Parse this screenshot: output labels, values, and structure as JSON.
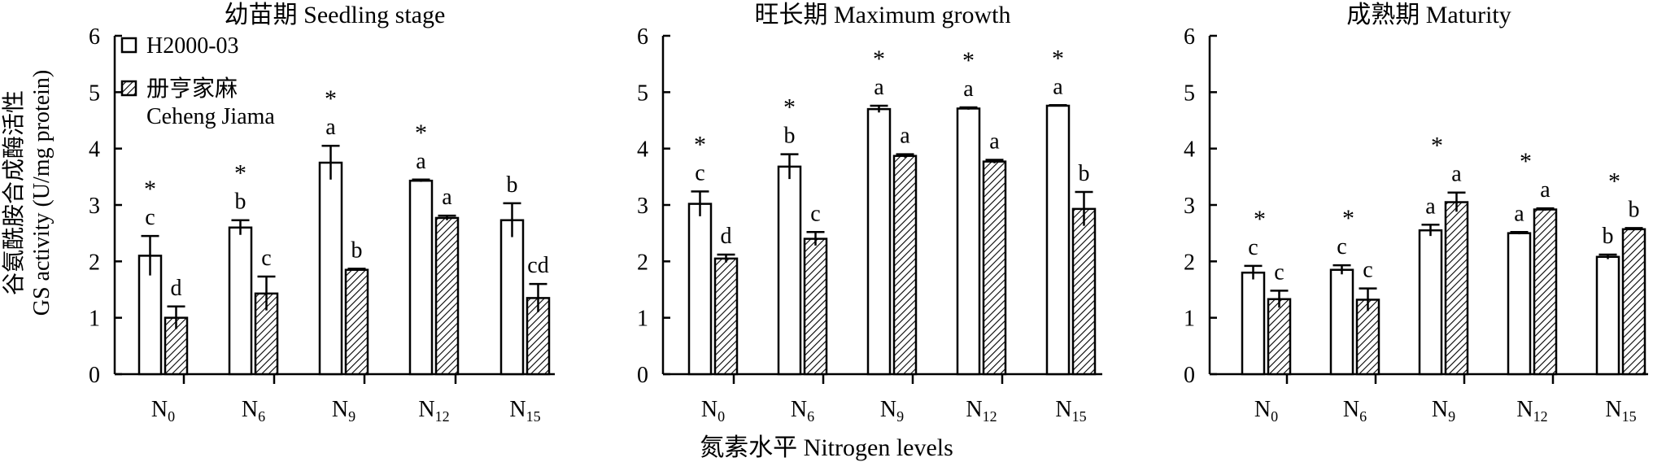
{
  "chart_data": [
    {
      "type": "bar",
      "title": "幼苗期 Seedling stage",
      "ylim": [
        0,
        6
      ],
      "yticks": [
        "0",
        "1",
        "2",
        "3",
        "4",
        "5",
        "6"
      ],
      "categories": [
        "N0",
        "N6",
        "N9",
        "N12",
        "N15"
      ],
      "series": [
        {
          "name": "H2000-03",
          "values": [
            2.1,
            2.6,
            3.75,
            3.43,
            2.73
          ],
          "errors": [
            0.35,
            0.13,
            0.3,
            0.02,
            0.3
          ],
          "letters": [
            "c",
            "b",
            "a",
            "a",
            "b"
          ]
        },
        {
          "name": "册亨家麻 Ceheng Jiama",
          "values": [
            1.0,
            1.43,
            1.85,
            2.77,
            1.35
          ],
          "errors": [
            0.2,
            0.3,
            0.02,
            0.04,
            0.25
          ],
          "letters": [
            "d",
            "c",
            "b",
            "a",
            "cd"
          ]
        }
      ],
      "stars": [
        true,
        true,
        true,
        true,
        false
      ]
    },
    {
      "type": "bar",
      "title": "旺长期 Maximum growth",
      "ylim": [
        0,
        6
      ],
      "yticks": [
        "0",
        "1",
        "2",
        "3",
        "4",
        "5",
        "6"
      ],
      "categories": [
        "N0",
        "N6",
        "N9",
        "N12",
        "N15"
      ],
      "series": [
        {
          "name": "H2000-03",
          "values": [
            3.02,
            3.68,
            4.7,
            4.71,
            4.76
          ],
          "errors": [
            0.22,
            0.22,
            0.06,
            0.02,
            0.01
          ],
          "letters": [
            "c",
            "b",
            "a",
            "a",
            "a"
          ]
        },
        {
          "name": "册亨家麻 Ceheng Jiama",
          "values": [
            2.05,
            2.4,
            3.87,
            3.77,
            2.93
          ],
          "errors": [
            0.07,
            0.12,
            0.03,
            0.03,
            0.3
          ],
          "letters": [
            "d",
            "c",
            "a",
            "a",
            "b"
          ]
        }
      ],
      "stars": [
        true,
        true,
        true,
        true,
        true
      ]
    },
    {
      "type": "bar",
      "title": "成熟期 Maturity",
      "ylim": [
        0,
        6
      ],
      "yticks": [
        "0",
        "1",
        "2",
        "3",
        "4",
        "5",
        "6"
      ],
      "categories": [
        "N0",
        "N6",
        "N9",
        "N12",
        "N15"
      ],
      "series": [
        {
          "name": "H2000-03",
          "values": [
            1.8,
            1.85,
            2.55,
            2.5,
            2.08
          ],
          "errors": [
            0.12,
            0.08,
            0.1,
            0.02,
            0.04
          ],
          "letters": [
            "c",
            "c",
            "a",
            "a",
            "b"
          ]
        },
        {
          "name": "册亨家麻 Ceheng Jiama",
          "values": [
            1.33,
            1.32,
            3.05,
            2.92,
            2.57
          ],
          "errors": [
            0.15,
            0.2,
            0.17,
            0.02,
            0.02
          ],
          "letters": [
            "c",
            "c",
            "a",
            "a",
            "b"
          ]
        }
      ],
      "stars": [
        true,
        true,
        true,
        true,
        true
      ]
    }
  ],
  "ylabel_cn": "谷氨酰胺合成酶活性",
  "ylabel_en": "GS activity (U/mg protein)",
  "xlabel": "氮素水平 Nitrogen levels",
  "xtick_labels": [
    {
      "main": "N",
      "sub": "0"
    },
    {
      "main": "N",
      "sub": "6"
    },
    {
      "main": "N",
      "sub": "9"
    },
    {
      "main": "N",
      "sub": "12"
    },
    {
      "main": "N",
      "sub": "15"
    }
  ],
  "legend": {
    "entries": [
      {
        "label": "H2000-03",
        "style": "white"
      },
      {
        "label": "册亨家麻",
        "label2": "Ceheng Jiama",
        "style": "hatch"
      }
    ]
  },
  "significance_mark": "*",
  "colors": {
    "bar_outline": "#000000",
    "bar_white": "#ffffff",
    "hatch": "#000000"
  }
}
